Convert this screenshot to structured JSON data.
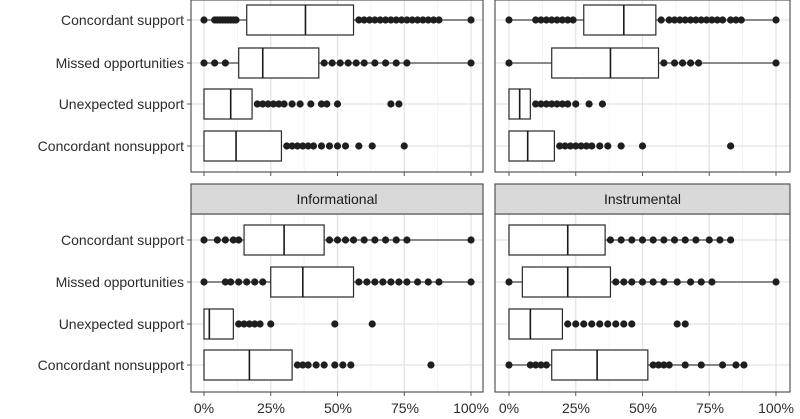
{
  "chart_data": {
    "type": "boxplot",
    "categories": [
      "Concordant support",
      "Missed opportunities",
      "Unexpected support",
      "Concordant nonsupport"
    ],
    "x_ticks": [
      "0%",
      "25%",
      "50%",
      "75%",
      "100%"
    ],
    "xlim": [
      0,
      100
    ],
    "grid": true,
    "panels": [
      {
        "strip": "",
        "boxes": [
          {
            "category": "Concordant support",
            "q1": 16,
            "median": 38,
            "q3": 56,
            "whisker_low": 0,
            "whisker_high": 100,
            "outliers": [
              0,
              4,
              5,
              6,
              7,
              8,
              9,
              10,
              11,
              12,
              58,
              60,
              62,
              64,
              66,
              68,
              70,
              72,
              74,
              76,
              78,
              80,
              82,
              84,
              86,
              88,
              100
            ]
          },
          {
            "category": "Missed opportunities",
            "q1": 13,
            "median": 22,
            "q3": 43,
            "whisker_low": 0,
            "whisker_high": 100,
            "outliers": [
              0,
              4,
              8,
              45,
              48,
              51,
              54,
              57,
              60,
              64,
              68,
              72,
              76,
              100
            ]
          },
          {
            "category": "Unexpected support",
            "q1": 0,
            "median": 10,
            "q3": 18,
            "whisker_low": 0,
            "whisker_high": 18,
            "outliers": [
              20,
              22,
              24,
              26,
              28,
              30,
              33,
              36,
              40,
              44,
              46,
              50,
              70,
              73
            ]
          },
          {
            "category": "Concordant nonsupport",
            "q1": 0,
            "median": 12,
            "q3": 29,
            "whisker_low": 0,
            "whisker_high": 29,
            "outliers": [
              31,
              33,
              35,
              37,
              39,
              41,
              44,
              47,
              50,
              53,
              58,
              63,
              75
            ]
          }
        ]
      },
      {
        "strip": "",
        "boxes": [
          {
            "category": "Concordant support",
            "q1": 28,
            "median": 43,
            "q3": 55,
            "whisker_low": 0,
            "whisker_high": 100,
            "outliers": [
              0,
              10,
              12,
              14,
              16,
              18,
              20,
              22,
              24,
              57,
              60,
              62,
              64,
              66,
              68,
              70,
              72,
              74,
              76,
              78,
              80,
              83,
              85,
              87,
              100
            ]
          },
          {
            "category": "Missed opportunities",
            "q1": 16,
            "median": 38,
            "q3": 56,
            "whisker_low": 0,
            "whisker_high": 100,
            "outliers": [
              0,
              58,
              62,
              65,
              68,
              71,
              100
            ]
          },
          {
            "category": "Unexpected support",
            "q1": 0,
            "median": 4,
            "q3": 8,
            "whisker_low": 0,
            "whisker_high": 8,
            "outliers": [
              10,
              12,
              14,
              16,
              18,
              20,
              22,
              25,
              30,
              35
            ]
          },
          {
            "category": "Concordant nonsupport",
            "q1": 0,
            "median": 7,
            "q3": 17,
            "whisker_low": 0,
            "whisker_high": 17,
            "outliers": [
              19,
              21,
              23,
              25,
              27,
              29,
              31,
              34,
              37,
              42,
              50,
              83
            ]
          }
        ]
      },
      {
        "strip": "Informational",
        "boxes": [
          {
            "category": "Concordant support",
            "q1": 15,
            "median": 30,
            "q3": 45,
            "whisker_low": 0,
            "whisker_high": 100,
            "outliers": [
              0,
              5,
              8,
              11,
              13,
              47,
              50,
              53,
              56,
              60,
              64,
              68,
              72,
              76,
              100
            ]
          },
          {
            "category": "Missed opportunities",
            "q1": 25,
            "median": 37,
            "q3": 56,
            "whisker_low": 0,
            "whisker_high": 100,
            "outliers": [
              0,
              8,
              10,
              13,
              16,
              19,
              22,
              58,
              61,
              64,
              67,
              70,
              73,
              76,
              80,
              84,
              88,
              100
            ]
          },
          {
            "category": "Unexpected support",
            "q1": 0,
            "median": 2,
            "q3": 11,
            "whisker_low": 0,
            "whisker_high": 11,
            "outliers": [
              13,
              15,
              17,
              19,
              21,
              25,
              49,
              63
            ]
          },
          {
            "category": "Concordant nonsupport",
            "q1": 0,
            "median": 17,
            "q3": 33,
            "whisker_low": 0,
            "whisker_high": 33,
            "outliers": [
              35,
              37,
              39,
              42,
              45,
              49,
              52,
              55,
              85
            ]
          }
        ]
      },
      {
        "strip": "Instrumental",
        "boxes": [
          {
            "category": "Concordant support",
            "q1": 0,
            "median": 22,
            "q3": 36,
            "whisker_low": 0,
            "whisker_high": 83,
            "outliers": [
              38,
              42,
              46,
              50,
              54,
              58,
              62,
              66,
              70,
              75,
              79,
              83
            ]
          },
          {
            "category": "Missed opportunities",
            "q1": 5,
            "median": 22,
            "q3": 38,
            "whisker_low": 0,
            "whisker_high": 100,
            "outliers": [
              0,
              40,
              43,
              46,
              50,
              54,
              58,
              63,
              68,
              72,
              76,
              100
            ]
          },
          {
            "category": "Unexpected support",
            "q1": 0,
            "median": 8,
            "q3": 20,
            "whisker_low": 0,
            "whisker_high": 20,
            "outliers": [
              22,
              25,
              28,
              31,
              34,
              37,
              40,
              43,
              46,
              63,
              66
            ]
          },
          {
            "category": "Concordant nonsupport",
            "q1": 16,
            "median": 33,
            "q3": 52,
            "whisker_low": 0,
            "whisker_high": 88,
            "outliers": [
              0,
              8,
              10,
              12,
              14,
              54,
              56,
              58,
              60,
              66,
              72,
              80,
              85,
              88
            ]
          }
        ]
      }
    ]
  }
}
